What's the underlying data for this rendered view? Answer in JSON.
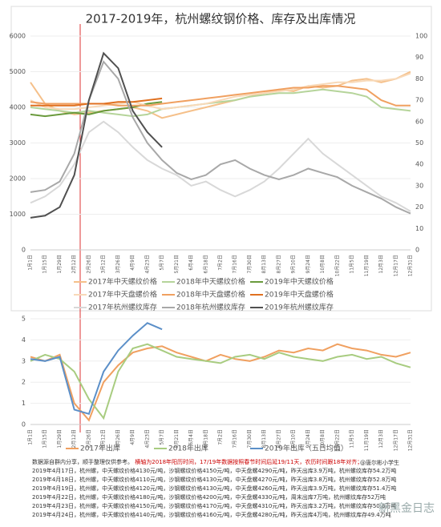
{
  "chart_data": [
    {
      "type": "line",
      "title": "2017-2019年，杭州螺纹钢价格、库存及出库情况",
      "categories": [
        "1月1日",
        "1月15日",
        "1月29日",
        "2月12日",
        "2月26日",
        "3月12日",
        "3月26日",
        "4月9日",
        "4月23日",
        "5月7日",
        "5月21日",
        "6月4日",
        "6月18日",
        "7月2日",
        "7月16日",
        "7月30日",
        "8月13日",
        "8月27日",
        "9月10日",
        "9月24日",
        "10月8日",
        "10月22日",
        "11月5日",
        "11月19日",
        "12月3日",
        "12月17日",
        "12月31日"
      ],
      "ylim": [
        0,
        6000
      ],
      "yticks": [
        0,
        1000,
        2000,
        3000,
        4000,
        5000,
        6000
      ],
      "y2lim": [
        0,
        100
      ],
      "y2ticks": [
        0,
        10,
        20,
        30,
        40,
        50,
        60,
        70,
        80,
        90,
        100
      ],
      "grid": true,
      "series": [
        {
          "name": "2017年中天螺纹价格",
          "color": "#f5c08a",
          "values": [
            4700,
            4100,
            3900,
            3800,
            3850,
            3900,
            3950,
            4000,
            3900,
            3700,
            3800,
            3900,
            4000,
            4100,
            4200,
            4300,
            4400,
            4500,
            4450,
            4600,
            4550,
            4600,
            4750,
            4800,
            4700,
            4800,
            5000
          ]
        },
        {
          "name": "2018年中天螺纹价格",
          "color": "#b5d49a",
          "values": [
            4000,
            3950,
            3900,
            3850,
            3900,
            3850,
            3800,
            3750,
            3800,
            3950,
            4000,
            4050,
            4100,
            4150,
            4200,
            4300,
            4350,
            4400,
            4400,
            4450,
            4500,
            4450,
            4400,
            4300,
            4000,
            3950,
            3900
          ]
        },
        {
          "name": "2019年中天螺纹价格",
          "color": "#6a9a3c",
          "values": [
            3800,
            3750,
            3800,
            3850,
            3800,
            3900,
            3950,
            4000,
            4100,
            4150,
            null,
            null,
            null,
            null,
            null,
            null,
            null,
            null,
            null,
            null,
            null,
            null,
            null,
            null,
            null,
            null,
            null
          ]
        },
        {
          "name": "2017年中天盘螺价格",
          "color": "#f8d9b8",
          "values": [
            4200,
            4000,
            3950,
            3950,
            4000,
            4050,
            4100,
            4150,
            4050,
            3950,
            4000,
            4050,
            4100,
            4200,
            4300,
            4350,
            4400,
            4450,
            4500,
            4600,
            4650,
            4700,
            4700,
            4750,
            4750,
            4800,
            4950
          ]
        },
        {
          "name": "2018年中天盘螺价格",
          "color": "#f0a060",
          "values": [
            4150,
            4100,
            4100,
            4100,
            4100,
            4100,
            4050,
            4050,
            4050,
            4100,
            4150,
            4200,
            4250,
            4300,
            4350,
            4400,
            4450,
            4500,
            4550,
            4550,
            4600,
            4600,
            4550,
            4500,
            4200,
            4050,
            4050
          ]
        },
        {
          "name": "2019年中天盘螺价格",
          "color": "#e07020",
          "values": [
            4050,
            4050,
            4050,
            4050,
            4100,
            4100,
            4150,
            4150,
            4200,
            4250,
            null,
            null,
            null,
            null,
            null,
            null,
            null,
            null,
            null,
            null,
            null,
            null,
            null,
            null,
            null,
            null,
            null
          ]
        },
        {
          "name": "2017年杭州螺纹库存",
          "color": "#d8d8d8",
          "axis": "y2",
          "values": [
            22,
            25,
            30,
            40,
            55,
            60,
            55,
            48,
            42,
            38,
            35,
            30,
            32,
            28,
            25,
            28,
            32,
            38,
            45,
            52,
            45,
            40,
            35,
            30,
            25,
            22,
            18
          ]
        },
        {
          "name": "2018年杭州螺纹库存",
          "color": "#a8a8a8",
          "axis": "y2",
          "values": [
            27,
            28,
            32,
            45,
            70,
            88,
            80,
            62,
            50,
            42,
            36,
            33,
            35,
            40,
            42,
            38,
            35,
            33,
            35,
            38,
            36,
            34,
            30,
            27,
            24,
            20,
            17
          ]
        },
        {
          "name": "2019年杭州螺纹库存",
          "color": "#505050",
          "axis": "y2",
          "values": [
            15,
            16,
            20,
            35,
            70,
            92,
            85,
            65,
            55,
            48,
            null,
            null,
            null,
            null,
            null,
            null,
            null,
            null,
            null,
            null,
            null,
            null,
            null,
            null,
            null,
            null,
            null
          ]
        }
      ]
    },
    {
      "type": "line",
      "categories": [
        "1月1日",
        "1月15日",
        "1月29日",
        "2月12日",
        "2月26日",
        "3月12日",
        "3月26日",
        "4月9日",
        "4月23日",
        "5月7日",
        "5月21日",
        "6月4日",
        "6月18日",
        "7月2日",
        "7月16日",
        "7月30日",
        "8月13日",
        "8月27日",
        "9月10日",
        "9月24日",
        "10月8日",
        "10月22日",
        "11月5日",
        "11月19日",
        "12月3日",
        "12月17日",
        "12月31日"
      ],
      "ylim": [
        0,
        5
      ],
      "yticks": [
        0,
        1,
        2,
        3,
        4,
        5
      ],
      "grid": true,
      "series": [
        {
          "name": "2017年出库",
          "color": "#f0a060",
          "values": [
            3.2,
            3.0,
            3.3,
            1.0,
            0.2,
            2.0,
            2.8,
            3.4,
            3.6,
            3.7,
            3.4,
            3.2,
            3.0,
            3.3,
            3.1,
            3.0,
            3.2,
            3.5,
            3.4,
            3.6,
            3.5,
            3.8,
            3.6,
            3.5,
            3.3,
            3.2,
            3.4
          ]
        },
        {
          "name": "2018年出库",
          "color": "#a8cc80",
          "values": [
            3.0,
            3.3,
            3.1,
            2.5,
            1.2,
            0.3,
            2.5,
            3.6,
            3.8,
            3.5,
            3.2,
            3.1,
            3.0,
            2.9,
            3.2,
            3.3,
            3.1,
            3.4,
            3.2,
            3.1,
            3.0,
            3.2,
            3.3,
            3.1,
            3.2,
            2.9,
            2.7
          ]
        },
        {
          "name": "2019年出库（五日均值）",
          "color": "#5b8fc8",
          "values": [
            3.1,
            3.0,
            3.2,
            0.7,
            0.5,
            2.5,
            3.5,
            4.2,
            4.8,
            4.5,
            null,
            null,
            null,
            null,
            null,
            null,
            null,
            null,
            null,
            null,
            null,
            null,
            null,
            null,
            null,
            null,
            null
          ]
        }
      ]
    }
  ],
  "notes": {
    "source": "数据源自群内分享，顺手整理仅供参考。",
    "remark": "横轴为2018年阳历时间，17/19年数据按照春节时间后延19/11天，农历时间跟18年对齐；",
    "lines": [
      "2019年4月17日，杭州螺，中天螺纹价格4130元/吨，沙钢螺纹价格4150元/吨，中天盘螺4290元/吨，昨天出库3.9万吨，杭州螺纹库存54.2万吨",
      "2019年4月18日，杭州螺，中天螺纹价格4110元/吨，沙钢螺纹价格4130元/吨，中天盘螺4270元/吨，昨天出库3.8万吨，杭州螺纹库存52.8万吨",
      "2019年4月19日，杭州螺，中天螺纹价格4120元/吨，沙钢螺纹价格4130元/吨，中天盘螺4260元/吨，昨天出库3.9万吨，杭州螺纹库存51.4万吨",
      "2019年4月22日，杭州螺，中天螺纹价格4180元/吨，沙钢螺纹价格4200元/吨，中天盘螺4330元/吨，周末出库7万吨，杭州螺纹库存52万吨",
      "2019年4月23日，杭州螺，中天螺纹价格4150元/吨，沙钢螺纹价格4170元/吨，中天盘螺4310元/吨，昨天出库3.2万吨，杭州螺纹库存50.6万吨",
      "2019年4月24日，杭州螺，中天螺纹价格4140元/吨，沙钢螺纹价格4160元/吨，中天盘螺4280元/吨，昨天出库4万吨，杭州螺纹库存49.4万吨"
    ]
  },
  "author": "@唐尔彬小学生",
  "watermark": "新黑金日志"
}
